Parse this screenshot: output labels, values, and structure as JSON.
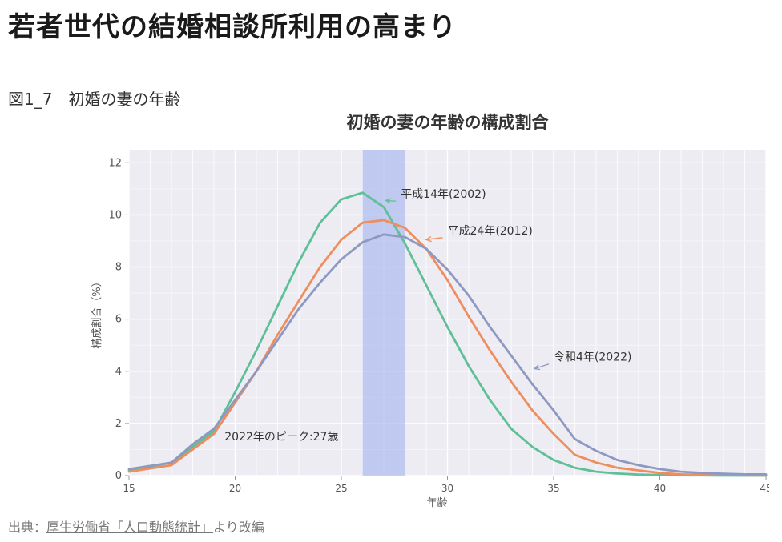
{
  "page": {
    "title": "若者世代の結婚相談所利用の高まり",
    "figure_caption": "図1_7　初婚の妻の年齢",
    "source_prefix": "出典：",
    "source_link": "厚生労働省「人口動態統計」",
    "source_suffix": "より改編"
  },
  "chart_data": {
    "type": "line",
    "title": "初婚の妻の年齢の構成割合",
    "xlabel": "年齢",
    "ylabel": "構成割合（%）",
    "xlim": [
      15,
      45
    ],
    "ylim": [
      0,
      12.5
    ],
    "xticks": [
      15,
      20,
      25,
      30,
      35,
      40,
      45
    ],
    "yticks": [
      0,
      2,
      4,
      6,
      8,
      10,
      12
    ],
    "grid": true,
    "highlight_band": {
      "x_start": 26,
      "x_end": 28,
      "color": "#a9b8ef"
    },
    "x": [
      15,
      17,
      18,
      19,
      20,
      21,
      22,
      23,
      24,
      25,
      26,
      27,
      28,
      29,
      30,
      31,
      32,
      33,
      34,
      35,
      36,
      37,
      38,
      39,
      40,
      41,
      42,
      43,
      44,
      45
    ],
    "series": [
      {
        "name": "平成14年(2002)",
        "color": "#5fbf97",
        "values": [
          0.2,
          0.5,
          1.1,
          1.7,
          3.2,
          4.8,
          6.5,
          8.2,
          9.7,
          10.6,
          10.85,
          10.3,
          8.9,
          7.3,
          5.7,
          4.2,
          2.9,
          1.8,
          1.1,
          0.6,
          0.3,
          0.15,
          0.08,
          0.04,
          0.02,
          0.01,
          0.01,
          0.0,
          0.0,
          0.0
        ]
      },
      {
        "name": "平成24年(2012)",
        "color": "#ef8d5e",
        "values": [
          0.15,
          0.4,
          1.0,
          1.6,
          2.8,
          4.0,
          5.4,
          6.7,
          8.0,
          9.05,
          9.7,
          9.8,
          9.5,
          8.7,
          7.5,
          6.1,
          4.8,
          3.6,
          2.5,
          1.6,
          0.8,
          0.5,
          0.3,
          0.2,
          0.1,
          0.05,
          0.03,
          0.02,
          0.01,
          0.01
        ]
      },
      {
        "name": "令和4年(2022)",
        "color": "#8e99c2",
        "values": [
          0.25,
          0.5,
          1.2,
          1.8,
          2.9,
          4.0,
          5.2,
          6.4,
          7.4,
          8.3,
          8.95,
          9.25,
          9.15,
          8.7,
          7.9,
          6.9,
          5.7,
          4.6,
          3.5,
          2.5,
          1.4,
          0.95,
          0.6,
          0.4,
          0.25,
          0.15,
          0.1,
          0.07,
          0.05,
          0.05
        ]
      }
    ],
    "annotations": [
      {
        "text": "平成14年(2002)",
        "series": 0
      },
      {
        "text": "平成24年(2012)",
        "series": 1
      },
      {
        "text": "令和4年(2022)",
        "series": 2
      },
      {
        "text": "2022年のピーク:27歳"
      }
    ]
  }
}
